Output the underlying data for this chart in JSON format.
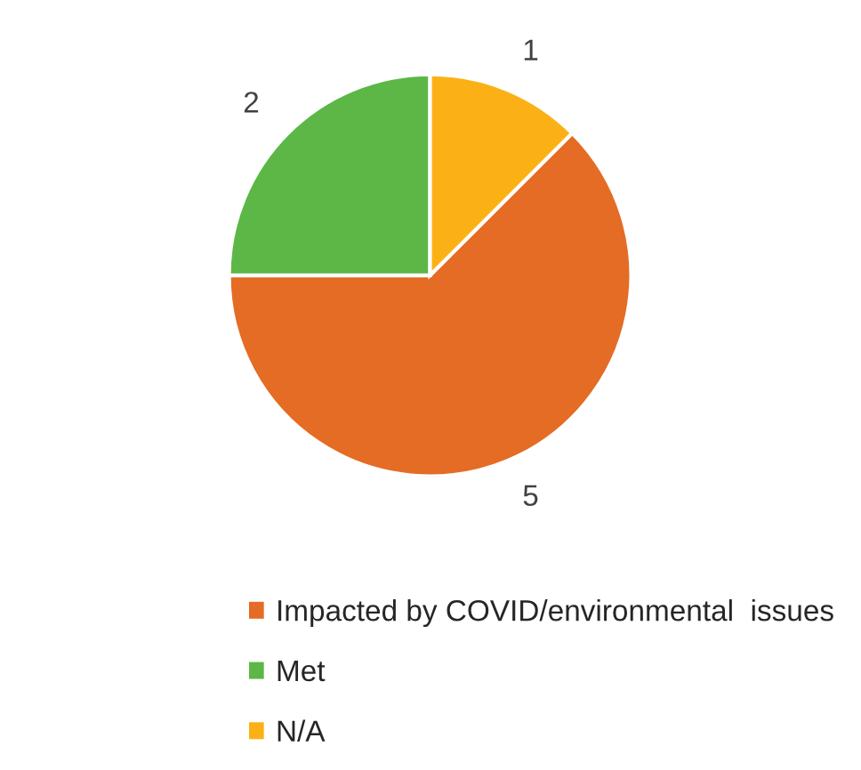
{
  "chart_data": {
    "type": "pie",
    "categories": [
      "Impacted by COVID/environmental  issues",
      "Met",
      "N/A"
    ],
    "values": [
      5,
      2,
      1
    ],
    "colors": [
      "#e46c24",
      "#5cb747",
      "#fbb116"
    ],
    "data_labels": true,
    "legend": "bottom"
  }
}
